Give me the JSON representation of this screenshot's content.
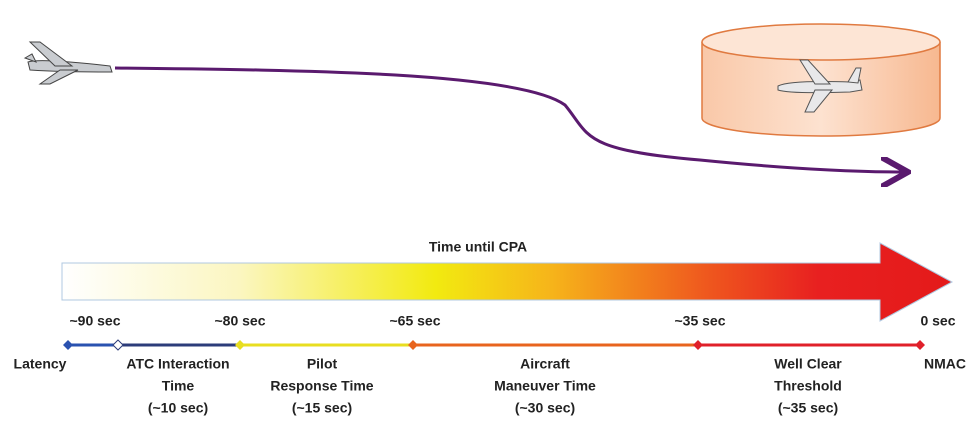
{
  "arrow_label": "Time until CPA",
  "time_markers": [
    "~90 sec",
    "~80 sec",
    "~65 sec",
    "~35 sec",
    "0 sec"
  ],
  "endpoints": {
    "start": "Latency",
    "end": "NMAC"
  },
  "phases": [
    {
      "lines": [
        "ATC Interaction",
        "Time",
        "(~10 sec)"
      ]
    },
    {
      "lines": [
        "Pilot",
        "Response Time",
        "(~15 sec)"
      ]
    },
    {
      "lines": [
        "Aircraft",
        "Maneuver Time",
        "(~30 sec)"
      ]
    },
    {
      "lines": [
        "Well Clear",
        "Threshold",
        "(~35 sec)"
      ]
    }
  ]
}
